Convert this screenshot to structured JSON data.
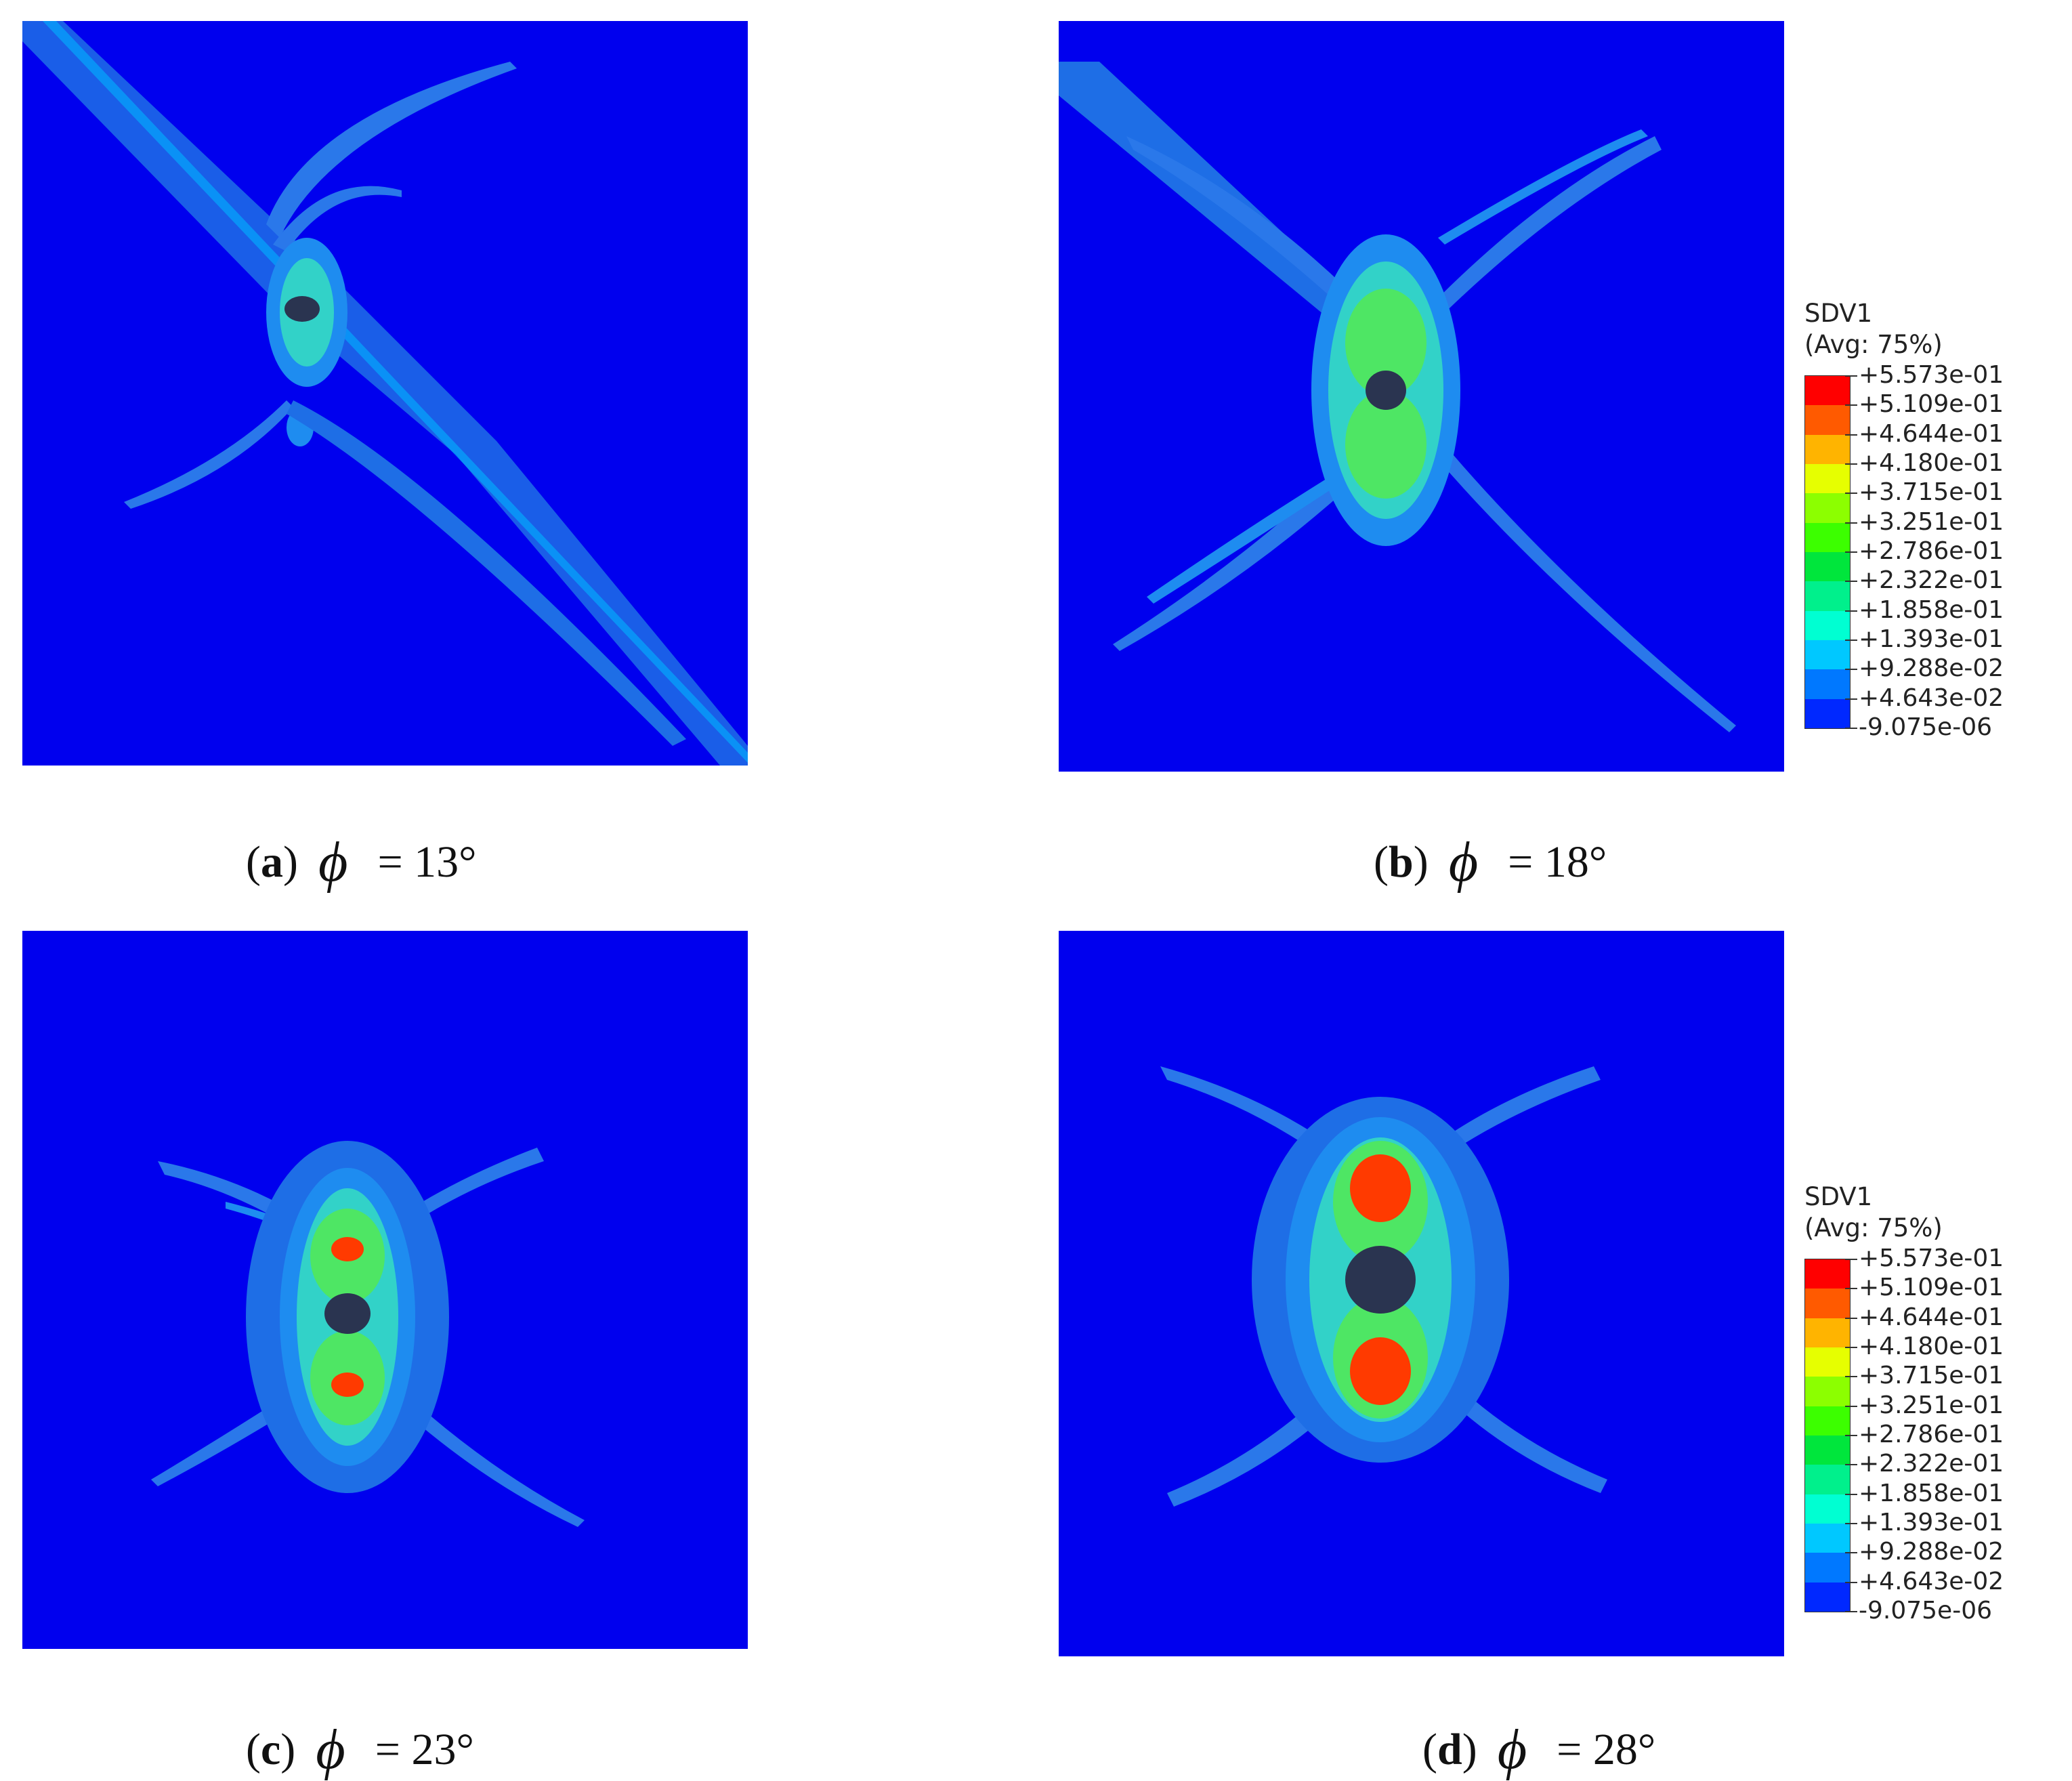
{
  "panels": [
    {
      "id": "a",
      "caption": {
        "letter": "a",
        "symbol": "ϕ",
        "value": "= 13°"
      }
    },
    {
      "id": "b",
      "caption": {
        "letter": "b",
        "symbol": "ϕ",
        "value": "= 18°"
      }
    },
    {
      "id": "c",
      "caption": {
        "letter": "c",
        "symbol": "ϕ",
        "value": "= 23°"
      }
    },
    {
      "id": "d",
      "caption": {
        "letter": "d",
        "symbol": "ϕ",
        "value": "= 28°"
      }
    }
  ],
  "legend": {
    "title": "SDV1",
    "subtitle": "(Avg: 75%)",
    "labels": [
      "+5.573e-01",
      "+5.109e-01",
      "+4.644e-01",
      "+4.180e-01",
      "+3.715e-01",
      "+3.251e-01",
      "+2.786e-01",
      "+2.322e-01",
      "+1.858e-01",
      "+1.393e-01",
      "+9.288e-02",
      "+4.643e-02",
      "-9.075e-06"
    ],
    "colors": [
      "#ff0000",
      "#ff5a00",
      "#ffb400",
      "#e6ff00",
      "#8cff00",
      "#3cff00",
      "#00e63c",
      "#00f08c",
      "#00ffd2",
      "#00c8ff",
      "#0078ff",
      "#0028ff"
    ]
  },
  "colors": {
    "background": "#0000ee",
    "hole": "#2a3450"
  }
}
